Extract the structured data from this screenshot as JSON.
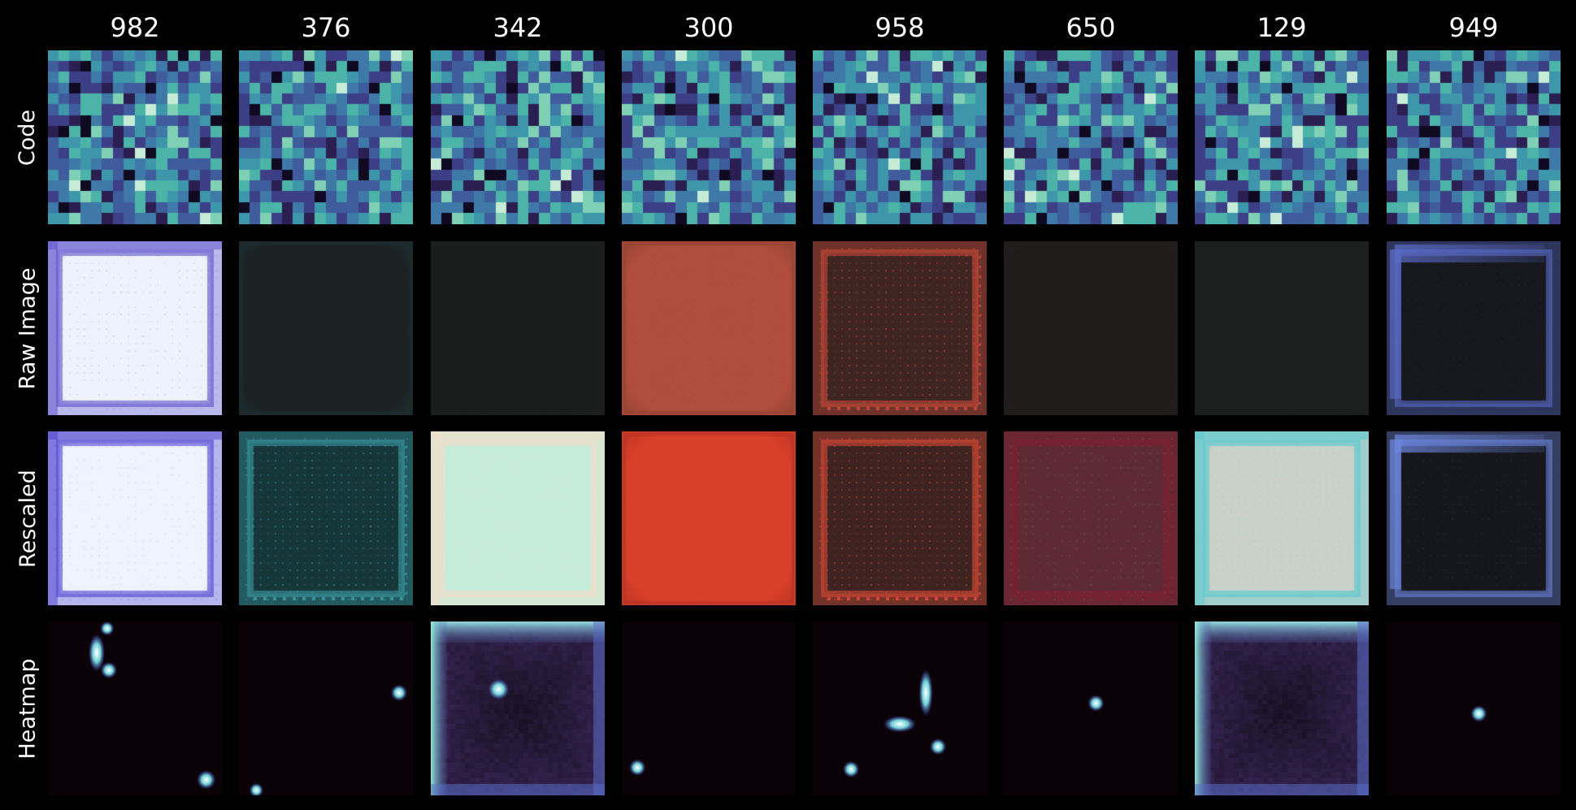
{
  "columns": [
    "982",
    "376",
    "342",
    "300",
    "958",
    "650",
    "129",
    "949"
  ],
  "rows": [
    "Code",
    "Raw Image",
    "Rescaled",
    "Heatmap"
  ],
  "colors": {
    "background": "#000000",
    "text": "#ffffff",
    "code_palette": [
      "#0f0a22",
      "#2a1f50",
      "#3c3f86",
      "#3f5c9c",
      "#3f79a8",
      "#3e96aa",
      "#4cb3a9",
      "#7fd0b5",
      "#c6ecd7"
    ]
  },
  "images": {
    "raw": [
      {
        "kind": "bright",
        "fill": "#eef2fd",
        "edge": "#5a4fc9"
      },
      {
        "kind": "flat",
        "fill": "#1c2122",
        "edge": "#20383c"
      },
      {
        "kind": "flat",
        "fill": "#1b1d1c",
        "edge": "#1d1f1e"
      },
      {
        "kind": "flat",
        "fill": "#b04d3c",
        "edge": "#7e3b34"
      },
      {
        "kind": "dotted",
        "fill": "#3f2522",
        "edge": "#c94a3a"
      },
      {
        "kind": "flat",
        "fill": "#211c1c",
        "edge": "#241f1f"
      },
      {
        "kind": "flat",
        "fill": "#1d1f1f",
        "edge": "#1e2020"
      },
      {
        "kind": "dark",
        "fill": "#17181e",
        "edge": "#5a6bc8"
      }
    ],
    "rescaled": [
      {
        "kind": "bright",
        "fill": "#eef4ff",
        "edge": "#4b3fd0"
      },
      {
        "kind": "dotted",
        "fill": "#16373a",
        "edge": "#3a9aa3"
      },
      {
        "kind": "bright",
        "fill": "#c5ecd9",
        "edge": "#f1ddc9"
      },
      {
        "kind": "flat",
        "fill": "#d9402a",
        "edge": "#a52c22"
      },
      {
        "kind": "dotted",
        "fill": "#3e2320",
        "edge": "#d94a36"
      },
      {
        "kind": "dotted",
        "fill": "#5e2a34",
        "edge": "#7f2030"
      },
      {
        "kind": "bright",
        "fill": "#c9d1c9",
        "edge": "#57c9d0"
      },
      {
        "kind": "dark",
        "fill": "#16171c",
        "edge": "#6d86dd"
      }
    ],
    "heatmap_base": "#0a0207",
    "heatmaps": [
      {
        "frame": false,
        "spots": [
          [
            0.34,
            0.04,
            0.03,
            0.03
          ],
          [
            0.28,
            0.18,
            0.035,
            0.08
          ],
          [
            0.35,
            0.28,
            0.035,
            0.035
          ],
          [
            0.91,
            0.91,
            0.04,
            0.04
          ]
        ]
      },
      {
        "frame": false,
        "spots": [
          [
            0.92,
            0.41,
            0.035,
            0.035
          ],
          [
            0.1,
            0.97,
            0.03,
            0.03
          ]
        ]
      },
      {
        "frame": true,
        "spots": [
          [
            0.39,
            0.39,
            0.045,
            0.045
          ]
        ]
      },
      {
        "frame": false,
        "spots": [
          [
            0.09,
            0.84,
            0.035,
            0.035
          ]
        ]
      },
      {
        "frame": false,
        "spots": [
          [
            0.65,
            0.41,
            0.03,
            0.1
          ],
          [
            0.5,
            0.59,
            0.07,
            0.035
          ],
          [
            0.72,
            0.72,
            0.035,
            0.035
          ],
          [
            0.22,
            0.85,
            0.035,
            0.035
          ]
        ]
      },
      {
        "frame": false,
        "spots": [
          [
            0.53,
            0.47,
            0.035,
            0.035
          ]
        ]
      },
      {
        "frame": true,
        "spots": []
      },
      {
        "frame": false,
        "spots": [
          [
            0.53,
            0.53,
            0.035,
            0.035
          ]
        ]
      }
    ]
  }
}
